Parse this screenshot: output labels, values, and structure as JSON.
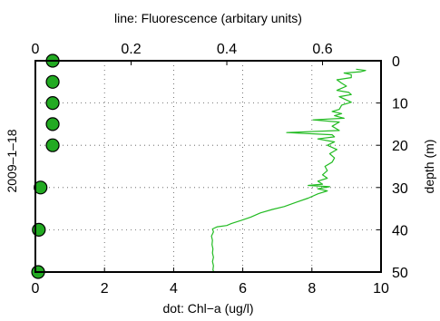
{
  "chart_data": {
    "type": "line",
    "title": "line: Fluorescence (arbitary units)",
    "side_label": "2009–1–18",
    "x_bottom": {
      "label": "dot: Chl−a (ug/l)",
      "range": [
        0,
        10
      ],
      "ticks": [
        0,
        2,
        4,
        6,
        8,
        10
      ]
    },
    "x_top": {
      "range": [
        0,
        0.7222
      ],
      "ticks": [
        0,
        0.2,
        0.4,
        0.6
      ],
      "tick_labels": [
        "0",
        "0.2",
        "0.4",
        "0.6"
      ]
    },
    "y_right": {
      "label": "depth (m)",
      "range": [
        0,
        50
      ],
      "inverted": true,
      "ticks": [
        0,
        10,
        20,
        30,
        40,
        50
      ]
    },
    "grid": "dotted",
    "dot_series": {
      "color": "#22aa22",
      "points": [
        {
          "chl": 0.5,
          "depth": 0
        },
        {
          "chl": 0.5,
          "depth": 5
        },
        {
          "chl": 0.5,
          "depth": 10
        },
        {
          "chl": 0.5,
          "depth": 15
        },
        {
          "chl": 0.5,
          "depth": 20
        },
        {
          "chl": 0.15,
          "depth": 30
        },
        {
          "chl": 0.1,
          "depth": 40
        },
        {
          "chl": 0.08,
          "depth": 50
        }
      ]
    },
    "line_series": {
      "color": "#22bb22",
      "points": [
        [
          0.67,
          2
        ],
        [
          0.69,
          2.3
        ],
        [
          0.68,
          2.6
        ],
        [
          0.645,
          2.9
        ],
        [
          0.66,
          3.3
        ],
        [
          0.66,
          4
        ],
        [
          0.63,
          4.5
        ],
        [
          0.64,
          5.3
        ],
        [
          0.65,
          6
        ],
        [
          0.63,
          7
        ],
        [
          0.655,
          7.5
        ],
        [
          0.66,
          8
        ],
        [
          0.635,
          8.5
        ],
        [
          0.65,
          9.3
        ],
        [
          0.66,
          9.8
        ],
        [
          0.64,
          10.5
        ],
        [
          0.635,
          11.5
        ],
        [
          0.62,
          12
        ],
        [
          0.64,
          12.5
        ],
        [
          0.625,
          13
        ],
        [
          0.645,
          13.6
        ],
        [
          0.58,
          14
        ],
        [
          0.635,
          14.5
        ],
        [
          0.62,
          15.5
        ],
        [
          0.635,
          16.5
        ],
        [
          0.525,
          17
        ],
        [
          0.62,
          17.5
        ],
        [
          0.625,
          18
        ],
        [
          0.59,
          18.5
        ],
        [
          0.625,
          19.2
        ],
        [
          0.61,
          20
        ],
        [
          0.63,
          21
        ],
        [
          0.615,
          22
        ],
        [
          0.625,
          23
        ],
        [
          0.62,
          24
        ],
        [
          0.605,
          25
        ],
        [
          0.61,
          26
        ],
        [
          0.6,
          27
        ],
        [
          0.61,
          27.8
        ],
        [
          0.59,
          28.5
        ],
        [
          0.6,
          29.2
        ],
        [
          0.57,
          29.5
        ],
        [
          0.615,
          29.8
        ],
        [
          0.59,
          30.3
        ],
        [
          0.61,
          30.8
        ],
        [
          0.59,
          31.5
        ],
        [
          0.57,
          32.5
        ],
        [
          0.545,
          33.5
        ],
        [
          0.52,
          34.5
        ],
        [
          0.495,
          35.2
        ],
        [
          0.47,
          36
        ],
        [
          0.45,
          37
        ],
        [
          0.43,
          37.8
        ],
        [
          0.41,
          38.5
        ],
        [
          0.4,
          39
        ],
        [
          0.38,
          39.3
        ],
        [
          0.37,
          39.8
        ],
        [
          0.372,
          40.5
        ],
        [
          0.368,
          41.5
        ],
        [
          0.37,
          42.5
        ],
        [
          0.369,
          43.5
        ],
        [
          0.371,
          44.5
        ],
        [
          0.37,
          45.5
        ],
        [
          0.372,
          46.5
        ],
        [
          0.37,
          47.5
        ],
        [
          0.372,
          48.5
        ],
        [
          0.371,
          49.5
        ],
        [
          0.373,
          50
        ]
      ]
    }
  }
}
